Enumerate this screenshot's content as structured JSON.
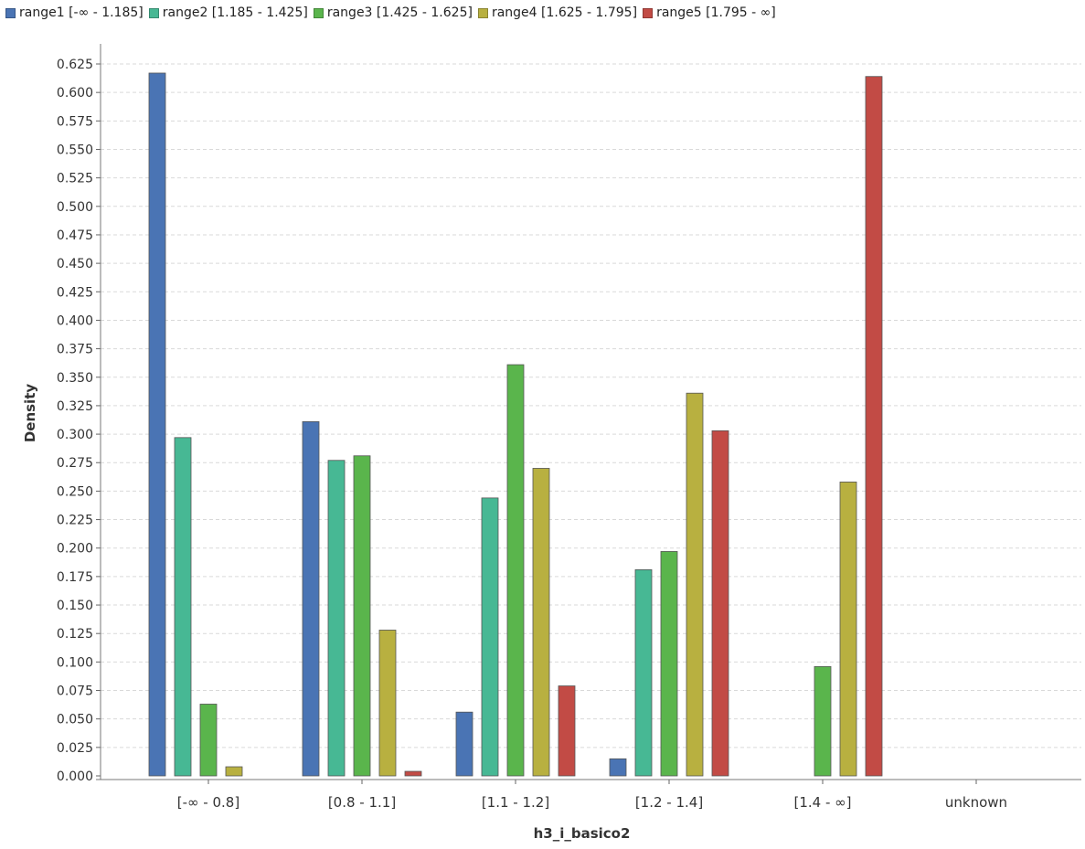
{
  "chart_data": {
    "type": "bar",
    "title": "",
    "xlabel": "h3_i_basico2",
    "ylabel": "Density",
    "categories": [
      "[-∞ - 0.8]",
      "[0.8 - 1.1]",
      "[1.1 - 1.2]",
      "[1.2 - 1.4]",
      "[1.4 - ∞]",
      "unknown"
    ],
    "ylim": [
      0,
      0.625
    ],
    "yticks": [
      "0.000",
      "0.025",
      "0.050",
      "0.075",
      "0.100",
      "0.125",
      "0.150",
      "0.175",
      "0.200",
      "0.225",
      "0.250",
      "0.275",
      "0.300",
      "0.325",
      "0.350",
      "0.375",
      "0.400",
      "0.425",
      "0.450",
      "0.475",
      "0.500",
      "0.525",
      "0.550",
      "0.575",
      "0.600",
      "0.625"
    ],
    "grid": true,
    "legend_position": "top-left",
    "series": [
      {
        "name": "range1 [-∞ - 1.185]",
        "color": "#4a74b4",
        "values": [
          0.617,
          0.311,
          0.056,
          0.015,
          0.0,
          0.0
        ]
      },
      {
        "name": "range2 [1.185 - 1.425]",
        "color": "#47b894",
        "values": [
          0.297,
          0.277,
          0.244,
          0.181,
          0.0,
          0.0
        ]
      },
      {
        "name": "range3 [1.425 - 1.625]",
        "color": "#5ab54c",
        "values": [
          0.063,
          0.281,
          0.361,
          0.197,
          0.096,
          0.0
        ]
      },
      {
        "name": "range4 [1.625 - 1.795]",
        "color": "#b8b040",
        "values": [
          0.008,
          0.128,
          0.27,
          0.336,
          0.258,
          0.0
        ]
      },
      {
        "name": "range5 [1.795 - ∞]",
        "color": "#c24b45",
        "values": [
          0.0,
          0.004,
          0.079,
          0.303,
          0.614,
          0.0
        ]
      }
    ]
  }
}
